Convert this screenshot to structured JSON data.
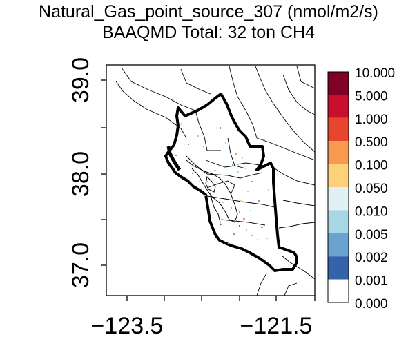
{
  "title": "Natural_Gas_point_source_307 (nmol/m2/s)",
  "subtitle": "BAAQMD Total: 32 ton CH4",
  "map": {
    "x_ticks": [
      {
        "value": -123.5,
        "label": "−123.5"
      },
      {
        "value": -121.5,
        "label": "−121.5"
      }
    ],
    "y_ticks": [
      {
        "value": 39.0,
        "label": "39.0"
      },
      {
        "value": 38.0,
        "label": "38.0"
      },
      {
        "value": 37.0,
        "label": "37.0"
      }
    ]
  },
  "legend": {
    "bins": [
      {
        "label": "10.000",
        "color": "#800026"
      },
      {
        "label": "5.000",
        "color": "#c8102e"
      },
      {
        "label": "1.000",
        "color": "#e7452c"
      },
      {
        "label": "0.500",
        "color": "#f79a50"
      },
      {
        "label": "0.100",
        "color": "#fdd17c"
      },
      {
        "label": "0.050",
        "color": "#dff1f5"
      },
      {
        "label": "0.010",
        "color": "#a9d6e5"
      },
      {
        "label": "0.005",
        "color": "#6aa3cf"
      },
      {
        "label": "0.002",
        "color": "#3563a9"
      },
      {
        "label": "0.001",
        "color": "#ffffff"
      }
    ],
    "bottom_label": "0.000"
  }
}
